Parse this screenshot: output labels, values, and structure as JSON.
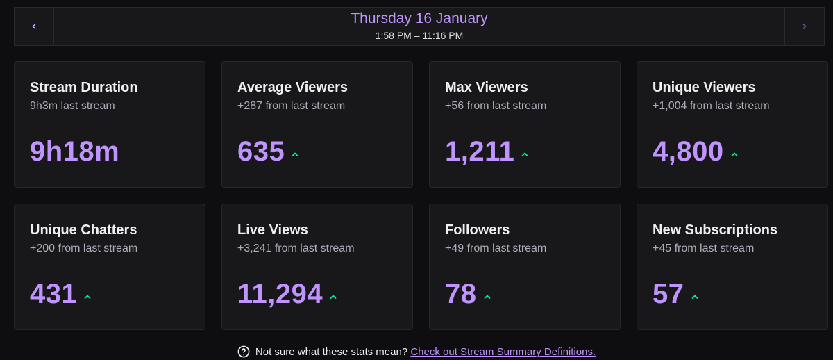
{
  "header": {
    "date": "Thursday 16 January",
    "time_range": "1:58 PM – 11:16 PM",
    "prev_icon": "chevron-left-icon",
    "next_icon": "chevron-right-icon"
  },
  "cards": [
    {
      "title": "Stream Duration",
      "sub": "9h3m last stream",
      "value": "9h18m",
      "trend": ""
    },
    {
      "title": "Average Viewers",
      "sub": "+287 from last stream",
      "value": "635",
      "trend": "up"
    },
    {
      "title": "Max Viewers",
      "sub": "+56 from last stream",
      "value": "1,211",
      "trend": "up"
    },
    {
      "title": "Unique Viewers",
      "sub": "+1,004 from last stream",
      "value": "4,800",
      "trend": "up"
    },
    {
      "title": "Unique Chatters",
      "sub": "+200 from last stream",
      "value": "431",
      "trend": "up"
    },
    {
      "title": "Live Views",
      "sub": "+3,241 from last stream",
      "value": "11,294",
      "trend": "up"
    },
    {
      "title": "Followers",
      "sub": "+49 from last stream",
      "value": "78",
      "trend": "up"
    },
    {
      "title": "New Subscriptions",
      "sub": "+45 from last stream",
      "value": "57",
      "trend": "up"
    }
  ],
  "footer": {
    "question": "Not sure what these stats mean?",
    "link": "Check out Stream Summary Definitions.",
    "icon": "help-circle-icon"
  },
  "colors": {
    "accent": "#bf94ff",
    "trend_up": "#00f593",
    "card_bg": "#18181b",
    "page_bg": "#0e0e10"
  }
}
